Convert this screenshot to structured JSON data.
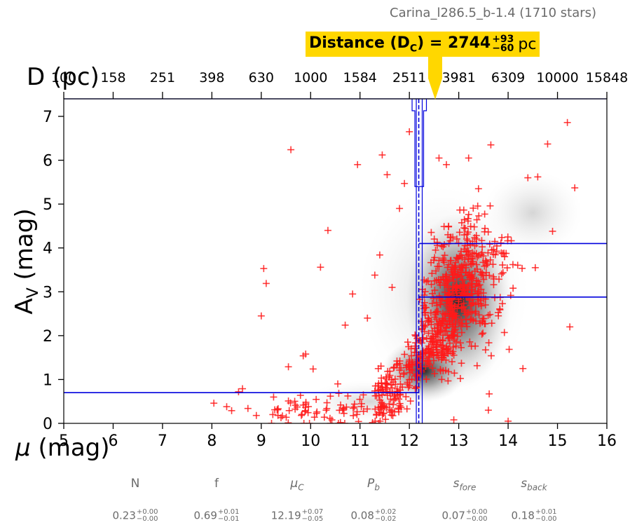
{
  "figure": {
    "title": "Carina_l286.5_b-1.4 (1710 stars)",
    "callout": {
      "label": "Distance (D",
      "sub": "C",
      "mid": ") = 2744",
      "sup": "+93",
      "sub2": "−60",
      "unit": "pc"
    },
    "params": [
      {
        "name": "N",
        "value": "0.23",
        "up": "+0.00",
        "down": "−0.00"
      },
      {
        "name": "f",
        "value": "0.69",
        "up": "+0.01",
        "down": "−0.01"
      },
      {
        "name": "μ",
        "sub": "C",
        "value": "12.19",
        "up": "+0.07",
        "down": "−0.05"
      },
      {
        "name": "P",
        "sub": "b",
        "value": "0.08",
        "up": "+0.02",
        "down": "−0.02"
      },
      {
        "name": "s",
        "sub": "fore",
        "value": "0.07",
        "up": "+0.00",
        "down": "−0.00"
      },
      {
        "name": "s",
        "sub": "back",
        "value": "0.18",
        "up": "+0.01",
        "down": "−0.00"
      }
    ]
  },
  "chart_data": {
    "type": "scatter",
    "title": "Carina_l286.5_b-1.4 (1710 stars)",
    "xlabel": "μ (mag)",
    "ylabel": "A_V (mag)",
    "top_axis_label": "D (pc)",
    "xlim": [
      5,
      16
    ],
    "ylim": [
      0,
      7.4
    ],
    "x_ticks": [
      5,
      6,
      7,
      8,
      9,
      10,
      11,
      12,
      13,
      14,
      15,
      16
    ],
    "x_tick_labels": [
      "5",
      "6",
      "7",
      "8",
      "9",
      "10",
      "11",
      "12",
      "13",
      "14",
      "15",
      "16"
    ],
    "y_ticks": [
      0,
      1,
      2,
      3,
      4,
      5,
      6,
      7
    ],
    "top_ticks_mu": [
      5,
      6,
      7,
      8,
      9,
      10,
      11,
      12,
      13,
      14,
      15,
      16
    ],
    "top_tick_labels": [
      "100",
      "158",
      "251",
      "398",
      "630",
      "1000",
      "1584",
      "2511",
      "3981",
      "6309",
      "10000",
      "15848"
    ],
    "distance_modulus": 12.19,
    "distance_modulus_err": [
      12.14,
      12.26
    ],
    "distance_pc": 2744,
    "extinction_levels": [
      {
        "name": "foreground",
        "x_range": [
          5,
          12.19
        ],
        "value": 0.7
      },
      {
        "name": "background_median",
        "x_range": [
          12.19,
          16
        ],
        "value": 2.88
      },
      {
        "name": "background_upper",
        "x_range": [
          12.19,
          16
        ],
        "value": 4.1
      }
    ],
    "distance_histogram_top": 5.4,
    "stars_shown": 1710,
    "stars": [
      [
        8.04,
        0.46
      ],
      [
        8.3,
        0.38
      ],
      [
        8.4,
        0.29
      ],
      [
        8.54,
        0.72
      ],
      [
        8.62,
        0.79
      ],
      [
        8.73,
        0.34
      ],
      [
        8.9,
        0.18
      ],
      [
        9.05,
        3.53
      ],
      [
        9.1,
        3.19
      ],
      [
        9.0,
        2.45
      ],
      [
        9.25,
        0.6
      ],
      [
        9.4,
        0.13
      ],
      [
        9.55,
        0.51
      ],
      [
        9.6,
        6.24
      ],
      [
        9.55,
        1.29
      ],
      [
        9.85,
        1.54
      ],
      [
        9.9,
        1.58
      ],
      [
        10.05,
        1.24
      ],
      [
        10.2,
        3.56
      ],
      [
        10.35,
        4.4
      ],
      [
        10.4,
        0.62
      ],
      [
        10.55,
        0.9
      ],
      [
        10.7,
        2.24
      ],
      [
        10.85,
        2.95
      ],
      [
        10.95,
        5.9
      ],
      [
        11.15,
        2.4
      ],
      [
        11.3,
        3.38
      ],
      [
        11.4,
        3.84
      ],
      [
        11.45,
        6.12
      ],
      [
        11.55,
        5.67
      ],
      [
        11.65,
        3.1
      ],
      [
        11.8,
        4.9
      ],
      [
        11.9,
        5.47
      ],
      [
        12.0,
        6.65
      ],
      [
        12.6,
        6.05
      ],
      [
        12.75,
        5.9
      ],
      [
        13.2,
        6.05
      ],
      [
        13.4,
        5.35
      ],
      [
        13.65,
        6.35
      ],
      [
        14.4,
        5.6
      ],
      [
        14.6,
        5.62
      ],
      [
        14.8,
        6.37
      ],
      [
        15.2,
        6.86
      ],
      [
        15.35,
        5.37
      ],
      [
        15.25,
        2.2
      ],
      [
        14.9,
        4.38
      ],
      [
        14.55,
        3.55
      ],
      [
        14.3,
        1.25
      ],
      [
        14.0,
        0.05
      ],
      [
        13.6,
        0.3
      ],
      [
        12.9,
        0.08
      ]
    ]
  }
}
